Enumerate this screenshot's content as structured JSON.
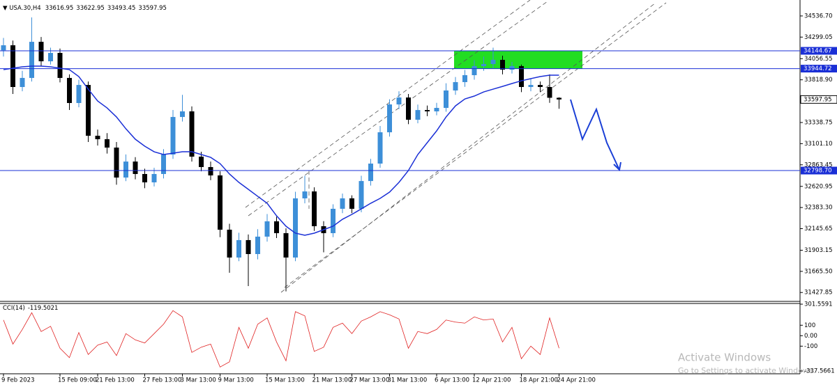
{
  "chart_data": {
    "type": "candlestick",
    "symbol": "USA.30,H4",
    "categories": [
      "9 Feb 2023",
      null,
      null,
      null,
      null,
      null,
      "15 Feb 09:00",
      null,
      null,
      null,
      "21 Feb 13:00",
      null,
      null,
      null,
      null,
      "27 Feb 13:00",
      null,
      null,
      null,
      "3 Mar 13:00",
      null,
      null,
      null,
      "9 Mar 13:00",
      null,
      null,
      null,
      null,
      "15 Mar 13:00",
      null,
      null,
      null,
      null,
      "21 Mar 13:00",
      null,
      null,
      null,
      "27 Mar 13:00",
      null,
      null,
      null,
      "31 Mar 13:00",
      null,
      null,
      null,
      null,
      "6 Apr 13:00",
      null,
      null,
      null,
      "12 Apr 21:00",
      null,
      null,
      null,
      null,
      "18 Apr 21:00",
      null,
      null,
      null,
      "24 Apr 21:00"
    ],
    "candles": {
      "open": [
        34150,
        34207,
        33738,
        33840,
        34246,
        34027,
        34121,
        33840,
        33558,
        33761,
        33190,
        33151,
        33057,
        32720,
        32900,
        32760,
        32666,
        32760,
        32979,
        33401,
        33464,
        32955,
        32838,
        32744,
        32134,
        31821,
        32017,
        31860,
        32056,
        32228,
        32095,
        31821,
        32486,
        32564,
        32173,
        32095,
        32369,
        32486,
        32369,
        32681,
        32877,
        33229,
        33542,
        33620,
        33370,
        33479,
        33464,
        33503,
        33699,
        33793,
        33871,
        33973,
        33996,
        34043,
        33933,
        33973,
        33738,
        33761,
        33738,
        33616.95
      ],
      "high": [
        34290,
        34260,
        33920,
        34520,
        34300,
        34180,
        34170,
        33880,
        33820,
        33800,
        33260,
        33220,
        33120,
        32980,
        32950,
        32820,
        32830,
        33040,
        33480,
        33650,
        33520,
        33010,
        32900,
        32790,
        32200,
        32100,
        32080,
        32140,
        32310,
        32280,
        32150,
        32560,
        32740,
        32610,
        32230,
        32420,
        32540,
        32520,
        32740,
        32930,
        33300,
        33600,
        33690,
        33660,
        33540,
        33530,
        33560,
        33780,
        33850,
        33930,
        34040,
        34080,
        34180,
        34090,
        34020,
        33990,
        33830,
        33800,
        33880,
        33622.95
      ],
      "low": [
        34080,
        33660,
        33690,
        33800,
        33970,
        33990,
        33790,
        33480,
        33510,
        33120,
        33080,
        32990,
        32640,
        32680,
        32700,
        32600,
        32620,
        32710,
        32930,
        33350,
        32900,
        32790,
        32690,
        32050,
        31650,
        31780,
        31500,
        31800,
        32000,
        32040,
        31440,
        31780,
        32430,
        32120,
        31880,
        32050,
        32320,
        32320,
        32330,
        32630,
        32830,
        33180,
        33490,
        33320,
        33330,
        33410,
        33420,
        33460,
        33650,
        33740,
        33820,
        33920,
        33950,
        33880,
        33890,
        33680,
        33690,
        33680,
        33560,
        33493.45
      ],
      "close": [
        34207,
        33738,
        33840,
        34246,
        34027,
        34121,
        33840,
        33558,
        33761,
        33190,
        33151,
        33057,
        32720,
        32900,
        32760,
        32666,
        32760,
        32979,
        33401,
        33464,
        32955,
        32838,
        32744,
        32134,
        31821,
        32017,
        31860,
        32056,
        32228,
        32095,
        31821,
        32486,
        32564,
        32173,
        32095,
        32369,
        32486,
        32369,
        32681,
        32877,
        33229,
        33542,
        33620,
        33370,
        33479,
        33464,
        33503,
        33699,
        33793,
        33871,
        33973,
        33996,
        34043,
        33933,
        33973,
        33738,
        33761,
        33738,
        33616.95,
        33597.95
      ],
      "up_color": "#3d8fd8",
      "down_color": "#000000"
    },
    "ma": {
      "color": "#1a2fd6",
      "values": [
        33933,
        33949,
        33965,
        33973,
        33973,
        33965,
        33949,
        33933,
        33855,
        33714,
        33581,
        33503,
        33401,
        33268,
        33151,
        33073,
        33010,
        32979,
        32994,
        33010,
        33010,
        32979,
        32947,
        32877,
        32760,
        32666,
        32588,
        32509,
        32431,
        32290,
        32173,
        32095,
        32071,
        32095,
        32134,
        32173,
        32251,
        32306,
        32368,
        32431,
        32486,
        32556,
        32666,
        32799,
        32979,
        33112,
        33245,
        33401,
        33526,
        33604,
        33636,
        33683,
        33714,
        33745,
        33777,
        33808,
        33832,
        33855,
        33871,
        33871
      ]
    },
    "hlines": [
      {
        "value": 34144.67,
        "color": "#1a2fd6"
      },
      {
        "value": 33944.72,
        "color": "#1a2fd6"
      },
      {
        "value": 32798.7,
        "label": "32798.70",
        "color": "#1a2fd6"
      }
    ],
    "zone_color": "#22dd22",
    "ylim": [
      31328,
      34716
    ],
    "yticks": [
      {
        "value": 34536.7,
        "label": "34536.70"
      },
      34299.05,
      34056.55,
      {
        "value": 33818.9,
        "label": "33818.90"
      },
      33338.75,
      {
        "value": 33101.1,
        "label": "33101.10"
      },
      32863.45,
      32620.95,
      {
        "value": 32383.3,
        "label": "32383.30"
      },
      32145.65,
      31903.15,
      {
        "value": 31665.5,
        "label": "31665.50"
      },
      31427.85
    ],
    "cci": {
      "name": "CCI(14)",
      "color": "#e02020",
      "values": [
        150,
        -80,
        60,
        220,
        40,
        90,
        -120,
        -210,
        30,
        -180,
        -90,
        -60,
        -190,
        20,
        -40,
        -70,
        20,
        110,
        240,
        180,
        -160,
        -110,
        -80,
        -300,
        -250,
        80,
        -120,
        110,
        170,
        -60,
        -240,
        230,
        190,
        -150,
        -110,
        80,
        120,
        20,
        140,
        180,
        230,
        200,
        160,
        -120,
        40,
        20,
        60,
        150,
        130,
        120,
        180,
        150,
        160,
        -60,
        80,
        -220,
        -100,
        -180,
        170,
        -119.5021
      ],
      "ylim": [
        -337.5661,
        301.5591
      ],
      "yticks": [
        301.5591,
        100,
        {
          "value": 0,
          "label": "0.00"
        },
        -100,
        -337.5661
      ]
    },
    "watermark": {
      "title": "Activate Windows",
      "subtitle": "Go to Settings to activate Windows."
    }
  }
}
